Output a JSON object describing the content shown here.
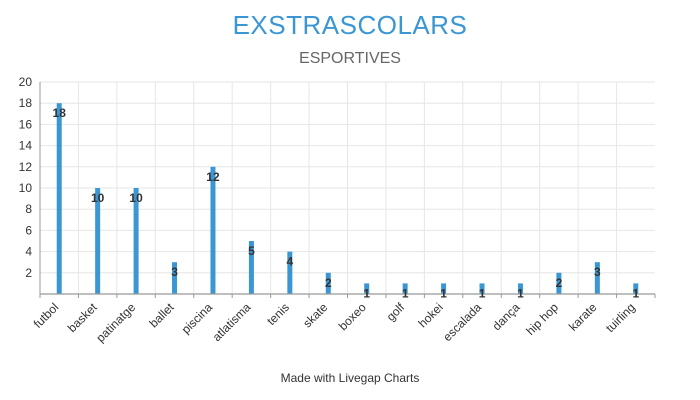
{
  "title": "EXSTRASCOLARS",
  "subtitle": "ESPORTIVES",
  "footer": "Made with Livegap Charts",
  "colors": {
    "bar": "#3a97d4",
    "title": "#3a97d4",
    "grid": "#e6e6e6",
    "axis": "#999999"
  },
  "chart_data": {
    "type": "bar",
    "title": "EXSTRASCOLARS",
    "subtitle": "ESPORTIVES",
    "categories": [
      "futbol",
      "basket",
      "patinatge",
      "ballet",
      "piscina",
      "atlatisma",
      "tenis",
      "skate",
      "boxeo",
      "golf",
      "hokei",
      "escalada",
      "dança",
      "hip hop",
      "karate",
      "tuirling"
    ],
    "values": [
      18,
      10,
      10,
      3,
      12,
      5,
      4,
      2,
      1,
      1,
      1,
      1,
      1,
      2,
      3,
      1
    ],
    "ylim": [
      0,
      20
    ],
    "yticks": [
      2,
      4,
      6,
      8,
      10,
      12,
      14,
      16,
      18,
      20
    ],
    "grid": true,
    "data_labels": true
  }
}
